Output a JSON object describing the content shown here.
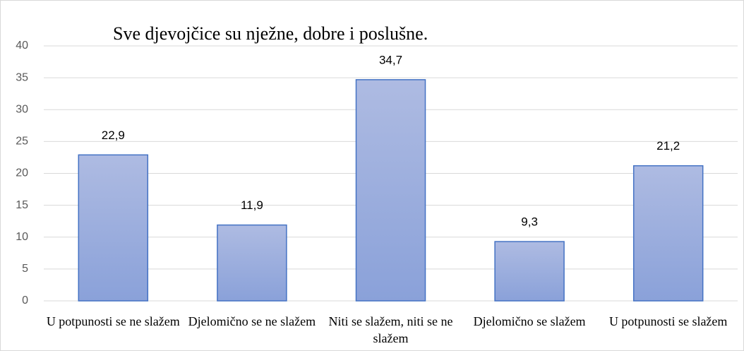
{
  "chart_data": {
    "type": "bar",
    "title": "Sve djevojčice su nježne, dobre i poslušne.",
    "categories": [
      "U potpunosti se ne slažem",
      "Djelomično se ne slažem",
      "Niti se slažem, niti se ne slažem",
      "Djelomično se slažem",
      "U potpunosti se slažem"
    ],
    "values": [
      22.9,
      11.9,
      34.7,
      9.3,
      21.2
    ],
    "value_labels": [
      "22,9",
      "11,9",
      "34,7",
      "9,3",
      "21,2"
    ],
    "color": "#8fa6dc",
    "ylim": [
      0,
      40
    ],
    "yticks": [
      0,
      5,
      10,
      15,
      20,
      25,
      30,
      35,
      40
    ],
    "grid": true
  }
}
